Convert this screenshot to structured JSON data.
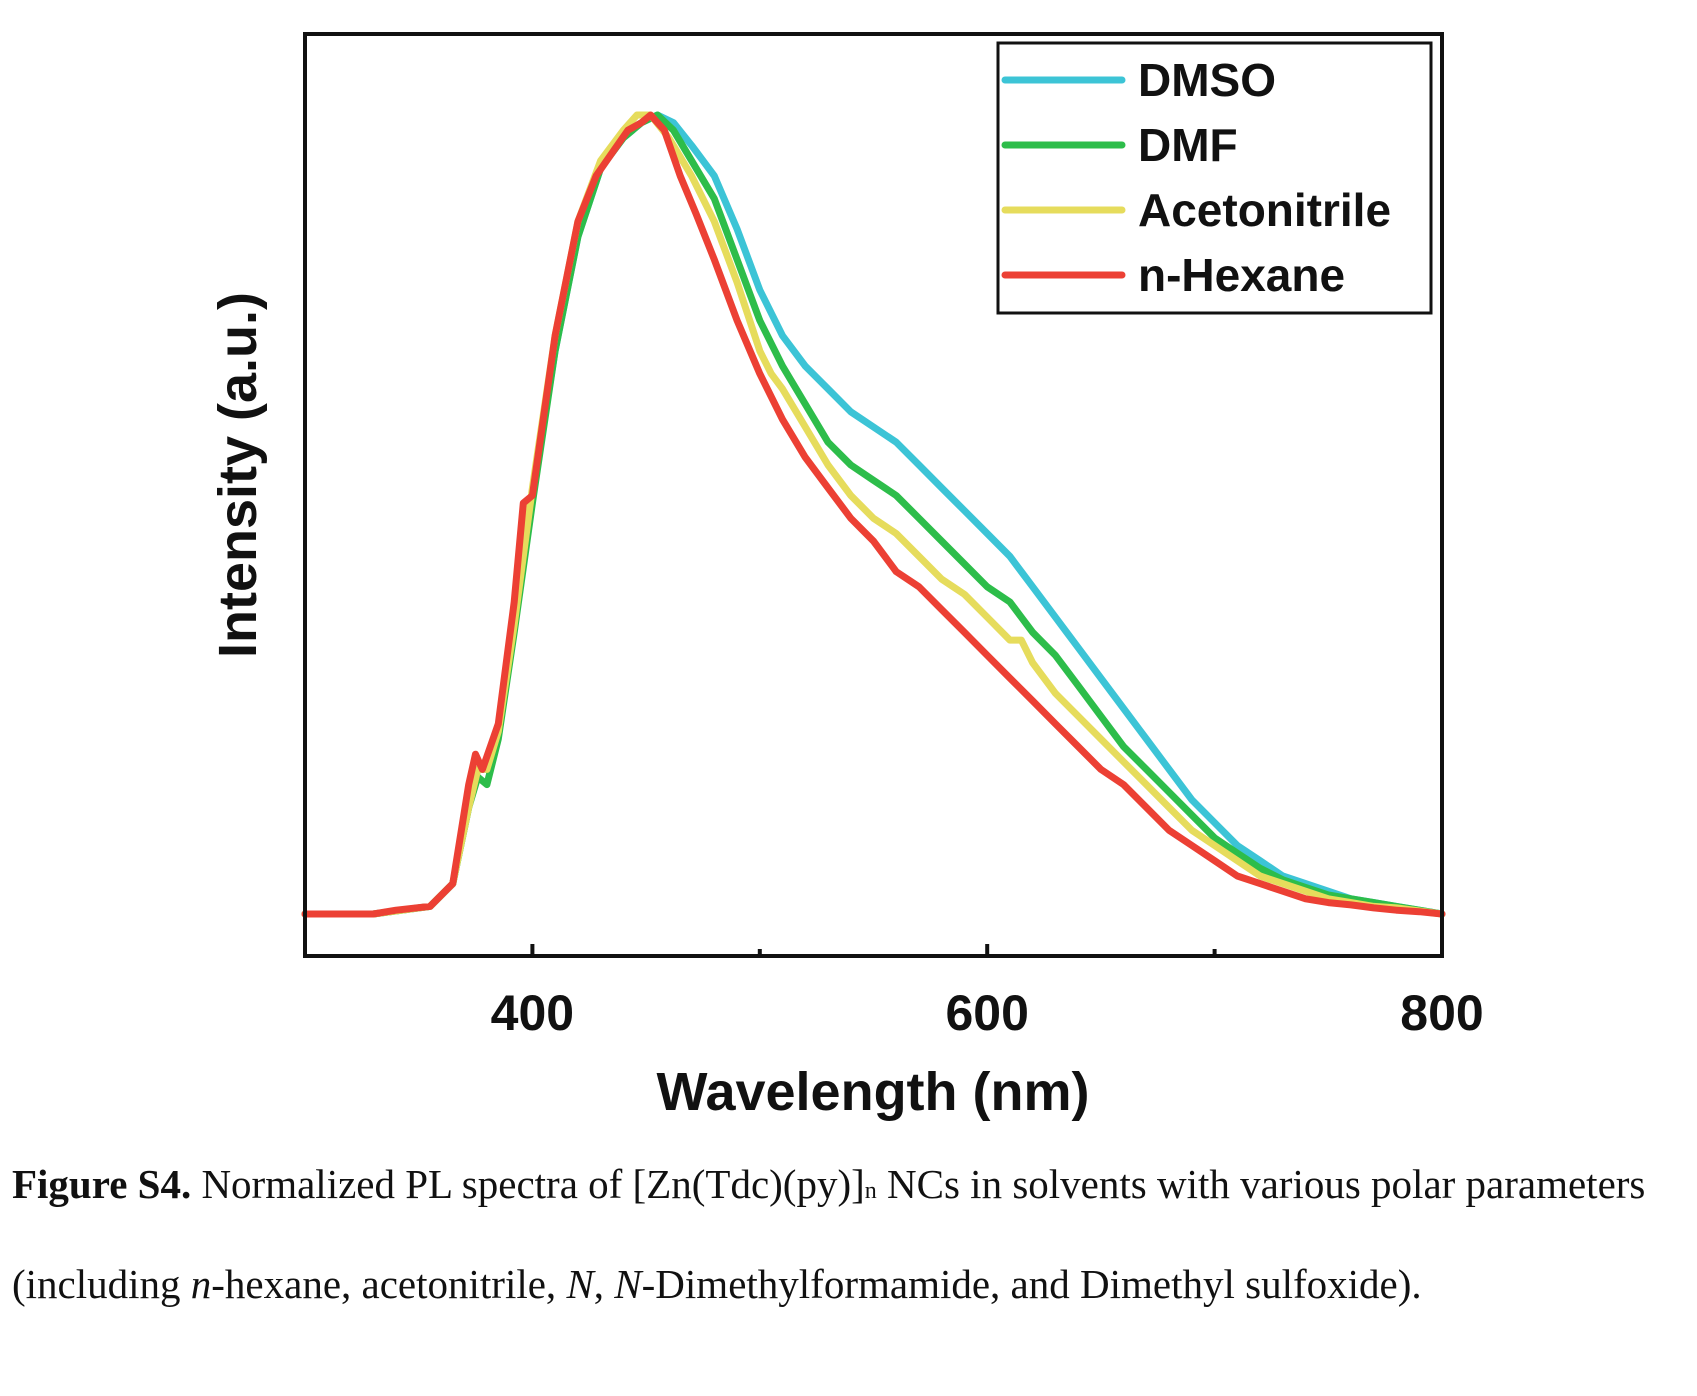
{
  "chart_data": {
    "type": "line",
    "title": "",
    "xlabel": "Wavelength (nm)",
    "ylabel": "Intensity (a.u.)",
    "xlim": [
      300,
      800
    ],
    "ylim": [
      0,
      1.1
    ],
    "x_ticks": [
      400,
      600,
      800
    ],
    "x_ticks_labels": [
      "400",
      "600",
      "800"
    ],
    "y_ticks_labels": [],
    "grid": false,
    "legend_position": "top-right",
    "series": [
      {
        "name": "DMSO",
        "color": "#3cc4d6",
        "x": [
          300,
          330,
          355,
          365,
          372,
          376,
          380,
          385,
          392,
          400,
          410,
          420,
          430,
          440,
          448,
          455,
          462,
          470,
          480,
          490,
          500,
          510,
          520,
          530,
          540,
          550,
          560,
          570,
          580,
          590,
          600,
          610,
          615,
          620,
          630,
          640,
          650,
          660,
          670,
          680,
          690,
          700,
          710,
          720,
          730,
          740,
          750,
          760,
          770,
          780,
          790,
          800
        ],
        "y": [
          0.0,
          0.0,
          0.01,
          0.04,
          0.14,
          0.19,
          0.19,
          0.24,
          0.38,
          0.55,
          0.74,
          0.89,
          0.98,
          1.02,
          1.04,
          1.05,
          1.04,
          1.01,
          0.97,
          0.9,
          0.82,
          0.76,
          0.72,
          0.69,
          0.66,
          0.64,
          0.62,
          0.59,
          0.56,
          0.53,
          0.5,
          0.47,
          0.45,
          0.43,
          0.39,
          0.35,
          0.31,
          0.27,
          0.23,
          0.19,
          0.15,
          0.12,
          0.09,
          0.07,
          0.05,
          0.04,
          0.03,
          0.02,
          0.015,
          0.01,
          0.005,
          0.0
        ]
      },
      {
        "name": "DMF",
        "color": "#2dbd4a",
        "x": [
          300,
          330,
          355,
          365,
          372,
          376,
          380,
          385,
          392,
          400,
          410,
          420,
          430,
          440,
          448,
          455,
          462,
          470,
          480,
          490,
          500,
          510,
          520,
          530,
          540,
          550,
          560,
          570,
          580,
          590,
          600,
          610,
          615,
          620,
          630,
          640,
          650,
          660,
          670,
          680,
          690,
          700,
          710,
          720,
          730,
          740,
          750,
          760,
          770,
          780,
          790,
          800
        ],
        "y": [
          0.0,
          0.0,
          0.01,
          0.04,
          0.14,
          0.18,
          0.17,
          0.23,
          0.37,
          0.54,
          0.74,
          0.89,
          0.98,
          1.02,
          1.04,
          1.05,
          1.03,
          0.99,
          0.94,
          0.86,
          0.78,
          0.72,
          0.67,
          0.62,
          0.59,
          0.57,
          0.55,
          0.52,
          0.49,
          0.46,
          0.43,
          0.41,
          0.39,
          0.37,
          0.34,
          0.3,
          0.26,
          0.22,
          0.19,
          0.16,
          0.13,
          0.1,
          0.08,
          0.06,
          0.045,
          0.035,
          0.025,
          0.02,
          0.015,
          0.01,
          0.005,
          0.0
        ]
      },
      {
        "name": "Acetonitrile",
        "color": "#e6dc5c",
        "x": [
          300,
          330,
          355,
          365,
          372,
          376,
          380,
          385,
          392,
          400,
          410,
          420,
          430,
          440,
          446,
          452,
          460,
          470,
          480,
          490,
          500,
          505,
          510,
          520,
          530,
          540,
          550,
          560,
          570,
          580,
          590,
          600,
          610,
          615,
          620,
          630,
          640,
          650,
          660,
          670,
          680,
          690,
          700,
          710,
          720,
          730,
          740,
          750,
          760,
          770,
          780,
          790,
          800
        ],
        "y": [
          0.0,
          0.0,
          0.01,
          0.04,
          0.14,
          0.19,
          0.19,
          0.24,
          0.38,
          0.56,
          0.76,
          0.91,
          0.99,
          1.03,
          1.05,
          1.05,
          1.02,
          0.97,
          0.91,
          0.83,
          0.74,
          0.71,
          0.69,
          0.64,
          0.59,
          0.55,
          0.52,
          0.5,
          0.47,
          0.44,
          0.42,
          0.39,
          0.36,
          0.36,
          0.33,
          0.29,
          0.26,
          0.23,
          0.2,
          0.17,
          0.14,
          0.11,
          0.09,
          0.07,
          0.05,
          0.04,
          0.03,
          0.02,
          0.015,
          0.01,
          0.008,
          0.004,
          0.0
        ]
      },
      {
        "name": "n-Hexane",
        "color": "#ec4034",
        "x": [
          300,
          330,
          340,
          355,
          365,
          372,
          375,
          378,
          385,
          392,
          396,
          400,
          410,
          420,
          428,
          435,
          442,
          448,
          452,
          458,
          465,
          472,
          480,
          490,
          500,
          510,
          520,
          530,
          540,
          550,
          560,
          570,
          580,
          590,
          600,
          610,
          620,
          630,
          640,
          650,
          660,
          670,
          680,
          690,
          700,
          710,
          720,
          730,
          740,
          750,
          760,
          770,
          780,
          790,
          800
        ],
        "y": [
          0.0,
          0.0,
          0.005,
          0.01,
          0.04,
          0.17,
          0.21,
          0.19,
          0.25,
          0.41,
          0.54,
          0.55,
          0.76,
          0.91,
          0.97,
          1.0,
          1.03,
          1.04,
          1.05,
          1.03,
          0.97,
          0.92,
          0.86,
          0.78,
          0.71,
          0.65,
          0.6,
          0.56,
          0.52,
          0.49,
          0.45,
          0.43,
          0.4,
          0.37,
          0.34,
          0.31,
          0.28,
          0.25,
          0.22,
          0.19,
          0.17,
          0.14,
          0.11,
          0.09,
          0.07,
          0.05,
          0.04,
          0.03,
          0.02,
          0.015,
          0.012,
          0.008,
          0.005,
          0.003,
          0.0
        ]
      }
    ]
  },
  "caption": {
    "label": "Figure S4.",
    "text_before_sub": " Normalized PL spectra of [Zn(Tdc)(py)]",
    "subscript": "n",
    "text_after_sub": " NCs in solvents with various polar parameters (including ",
    "italic_n": "n",
    "text_2": "-hexane, acetonitrile, ",
    "italic_N1": "N",
    "text_3": ", ",
    "italic_N2": "N",
    "text_4": "-Dimethylformamide, and Dimethyl sulfoxide)."
  }
}
